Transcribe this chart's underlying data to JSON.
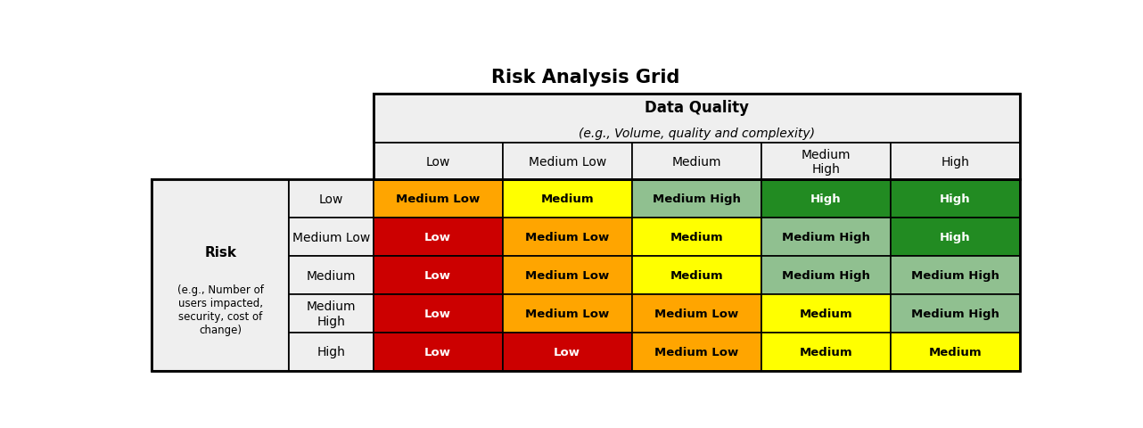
{
  "title": "Risk Analysis Grid",
  "col_header_main": "Data Quality",
  "col_header_sub": "(e.g., Volume, quality and complexity)",
  "row_header_main": "Risk",
  "row_header_sub": "(e.g., Number of\nusers impacted,\nsecurity, cost of\nchange)",
  "col_labels": [
    "Low",
    "Medium Low",
    "Medium",
    "Medium\nHigh",
    "High"
  ],
  "row_labels": [
    "Low",
    "Medium Low",
    "Medium",
    "Medium\nHigh",
    "High"
  ],
  "cell_texts": [
    [
      "Medium Low",
      "Medium",
      "Medium High",
      "High",
      "High"
    ],
    [
      "Low",
      "Medium Low",
      "Medium",
      "Medium High",
      "High"
    ],
    [
      "Low",
      "Medium Low",
      "Medium",
      "Medium High",
      "Medium High"
    ],
    [
      "Low",
      "Medium Low",
      "Medium Low",
      "Medium",
      "Medium High"
    ],
    [
      "Low",
      "Low",
      "Medium Low",
      "Medium",
      "Medium"
    ]
  ],
  "cell_colors": [
    [
      "#FFA500",
      "#FFFF00",
      "#90C090",
      "#228B22",
      "#228B22"
    ],
    [
      "#CC0000",
      "#FFA500",
      "#FFFF00",
      "#90C090",
      "#228B22"
    ],
    [
      "#CC0000",
      "#FFA500",
      "#FFFF00",
      "#90C090",
      "#90C090"
    ],
    [
      "#CC0000",
      "#FFA500",
      "#FFA500",
      "#FFFF00",
      "#90C090"
    ],
    [
      "#CC0000",
      "#CC0000",
      "#FFA500",
      "#FFFF00",
      "#FFFF00"
    ]
  ],
  "cell_text_colors": [
    [
      "#000000",
      "#000000",
      "#000000",
      "#FFFFFF",
      "#FFFFFF"
    ],
    [
      "#FFFFFF",
      "#000000",
      "#000000",
      "#000000",
      "#FFFFFF"
    ],
    [
      "#FFFFFF",
      "#000000",
      "#000000",
      "#000000",
      "#000000"
    ],
    [
      "#FFFFFF",
      "#000000",
      "#000000",
      "#000000",
      "#000000"
    ],
    [
      "#FFFFFF",
      "#FFFFFF",
      "#000000",
      "#000000",
      "#000000"
    ]
  ],
  "bg_color": "#FFFFFF",
  "header_bg": "#EFEFEF",
  "border_color": "#000000",
  "title_fontsize": 15,
  "header_fontsize": 12,
  "sub_fontsize": 10,
  "label_fontsize": 10,
  "cell_fontsize": 9.5
}
